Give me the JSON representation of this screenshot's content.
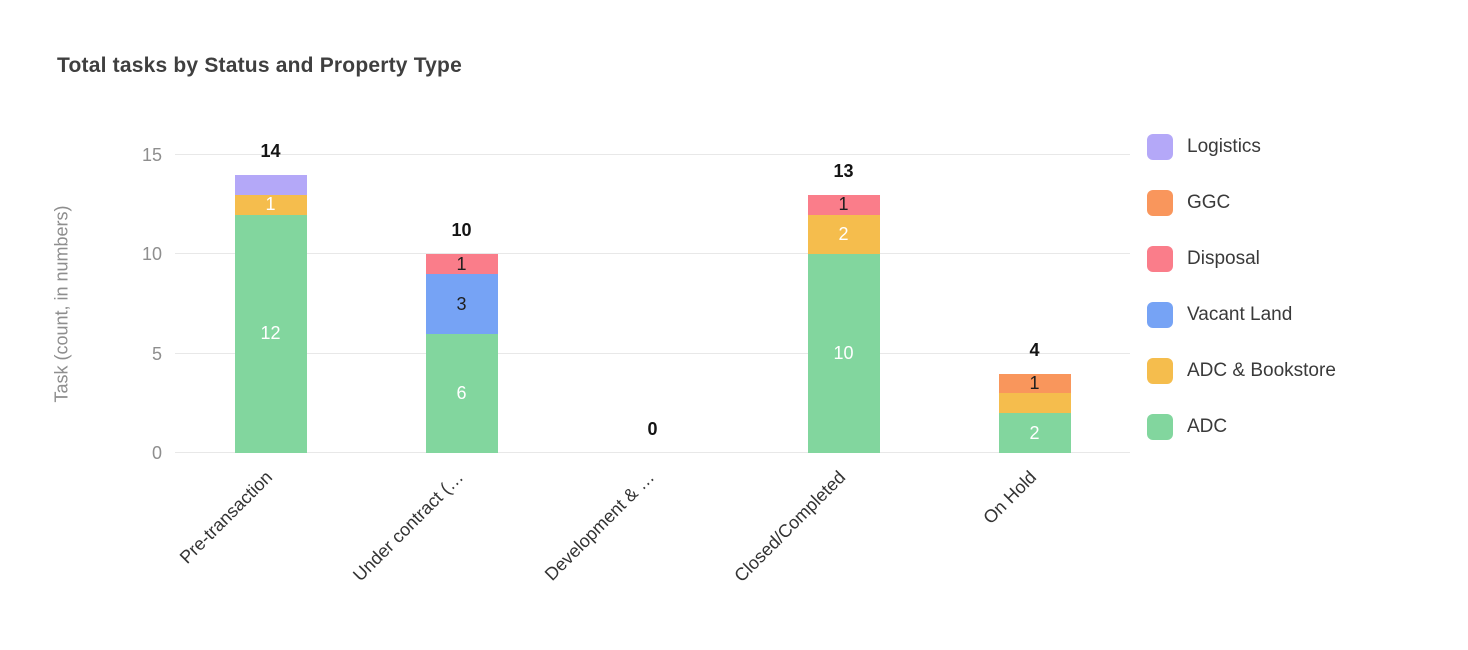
{
  "chart_data": {
    "type": "bar",
    "stacked": true,
    "title": "Total tasks by Status and Property Type",
    "xlabel": "",
    "ylabel": "Task (count, in numbers)",
    "ylim": [
      0,
      15
    ],
    "yticks": [
      15,
      10,
      5,
      0
    ],
    "grid": true,
    "legend_position": "right",
    "categories": [
      "Pre-transaction",
      "Under contract (…",
      "Development & …",
      "Closed/Completed",
      "On Hold"
    ],
    "series": [
      {
        "name": "Logistics",
        "color": "#b4a8f8",
        "values": [
          1,
          0,
          0,
          0,
          0
        ]
      },
      {
        "name": "GGC",
        "color": "#f9965c",
        "values": [
          0,
          0,
          0,
          0,
          1
        ]
      },
      {
        "name": "Disposal",
        "color": "#fa7d8a",
        "values": [
          0,
          1,
          0,
          1,
          0
        ]
      },
      {
        "name": "Vacant Land",
        "color": "#76a3f5",
        "values": [
          0,
          3,
          0,
          0,
          0
        ]
      },
      {
        "name": "ADC & Bookstore",
        "color": "#f5bd4d",
        "values": [
          1,
          0,
          0,
          2,
          1
        ]
      },
      {
        "name": "ADC",
        "color": "#82d69e",
        "values": [
          12,
          6,
          0,
          10,
          2
        ]
      }
    ],
    "totals": [
      14,
      10,
      0,
      13,
      4
    ],
    "bars": [
      {
        "category": "Pre-transaction",
        "total_label": "14",
        "segments": [
          {
            "series": "ADC",
            "value": 12,
            "label": "12",
            "label_color": "#ffffff"
          },
          {
            "series": "ADC & Bookstore",
            "value": 1,
            "label": "1",
            "label_color": "#ffffff"
          },
          {
            "series": "Logistics",
            "value": 1,
            "label": "",
            "label_color": ""
          }
        ]
      },
      {
        "category": "Under contract (…",
        "total_label": "10",
        "segments": [
          {
            "series": "ADC",
            "value": 6,
            "label": "6",
            "label_color": "#ffffff"
          },
          {
            "series": "Vacant Land",
            "value": 3,
            "label": "3",
            "label_color": "#1f1f1f"
          },
          {
            "series": "Disposal",
            "value": 1,
            "label": "1",
            "label_color": "#1f1f1f"
          }
        ]
      },
      {
        "category": "Development & …",
        "total_label": "0",
        "segments": []
      },
      {
        "category": "Closed/Completed",
        "total_label": "13",
        "segments": [
          {
            "series": "ADC",
            "value": 10,
            "label": "10",
            "label_color": "#ffffff"
          },
          {
            "series": "ADC & Bookstore",
            "value": 2,
            "label": "2",
            "label_color": "#ffffff"
          },
          {
            "series": "Disposal",
            "value": 1,
            "label": "1",
            "label_color": "#1f1f1f"
          }
        ]
      },
      {
        "category": "On Hold",
        "total_label": "4",
        "segments": [
          {
            "series": "ADC",
            "value": 2,
            "label": "2",
            "label_color": "#ffffff"
          },
          {
            "series": "ADC & Bookstore",
            "value": 1,
            "label": "",
            "label_color": ""
          },
          {
            "series": "GGC",
            "value": 1,
            "label": "1",
            "label_color": "#1f1f1f"
          }
        ]
      }
    ]
  }
}
